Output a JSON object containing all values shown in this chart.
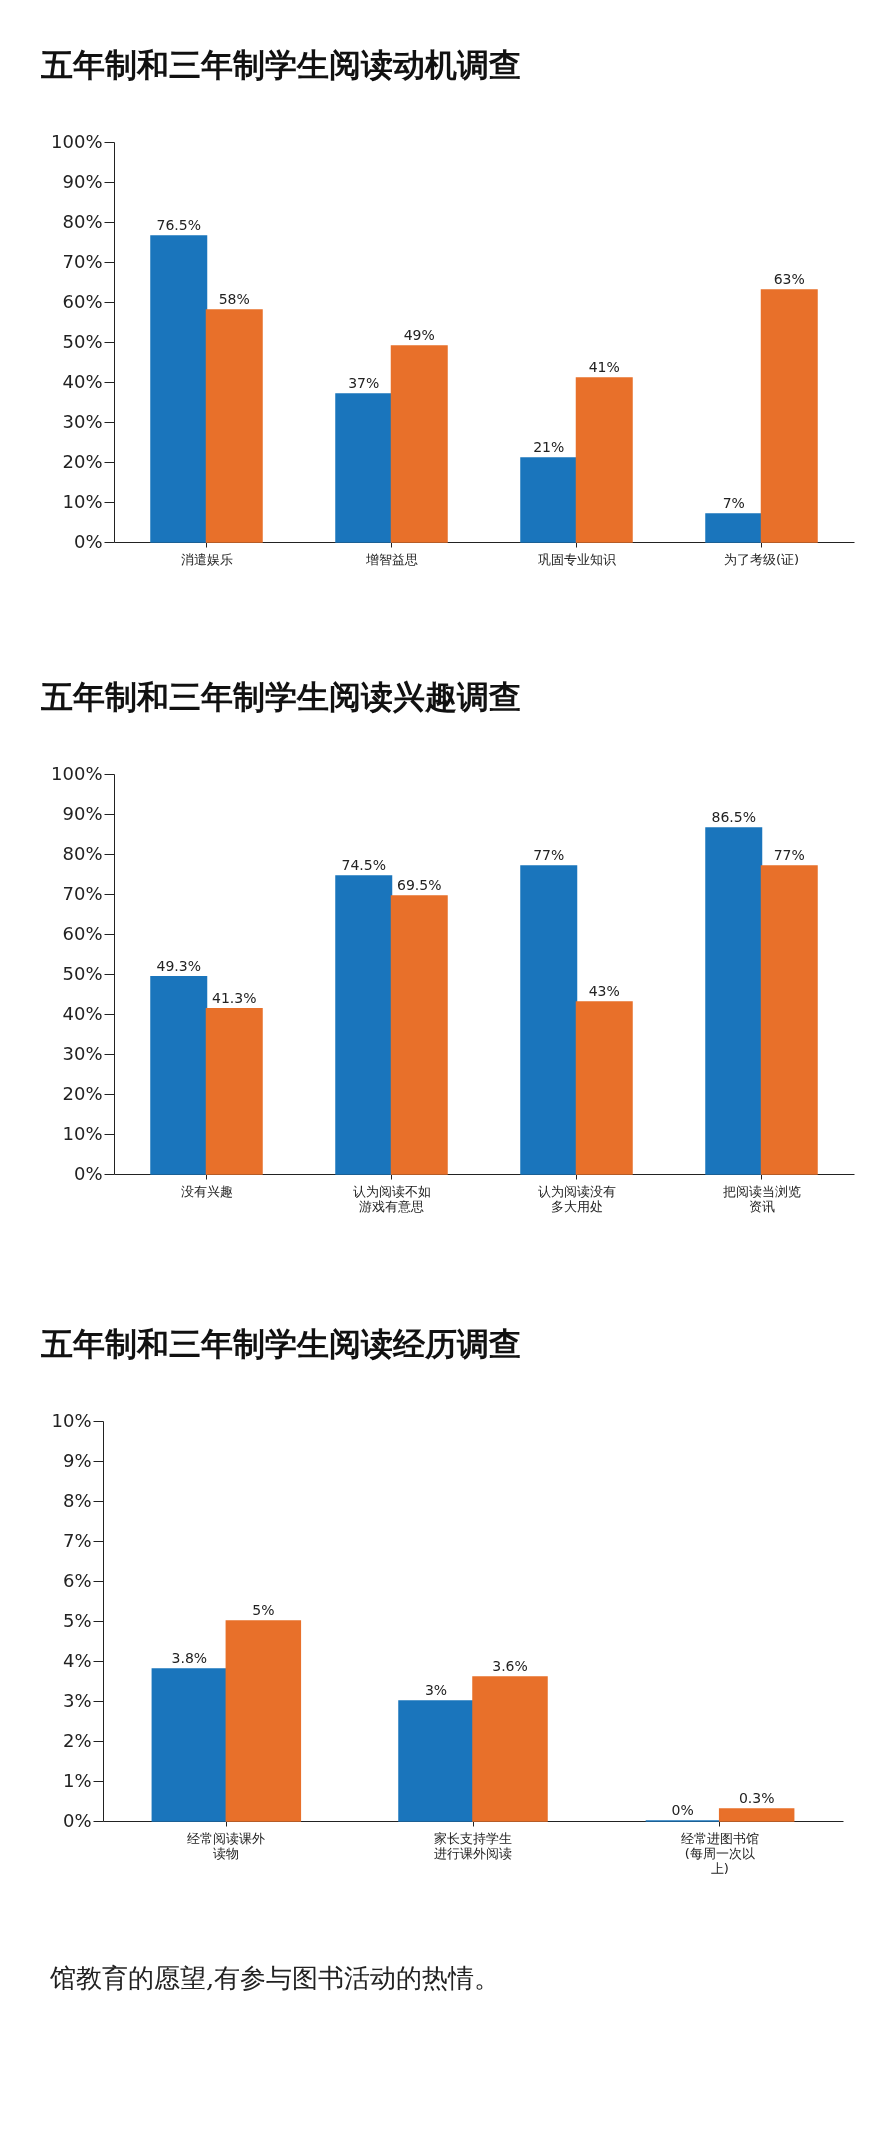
{
  "chart_data": [
    {
      "type": "bar",
      "title": "五年制和三年制学生阅读动机调查",
      "categories": [
        "消遣娱乐",
        "增智益思",
        "巩固专业知识",
        "为了考级(证)"
      ],
      "series": [
        {
          "color": "#1a75bc",
          "values": [
            76.5,
            37,
            21,
            7
          ],
          "value_labels": [
            "76.5%",
            "37%",
            "21%",
            "7%"
          ]
        },
        {
          "color": "#e8702a",
          "values": [
            58,
            49,
            41,
            63
          ],
          "value_labels": [
            "58%",
            "49%",
            "41%",
            "63%"
          ]
        }
      ],
      "ylim": [
        0,
        100
      ],
      "yticks": [
        {
          "value": 0,
          "label": "0%"
        },
        {
          "value": 10,
          "label": "10%"
        },
        {
          "value": 20,
          "label": "20%"
        },
        {
          "value": 30,
          "label": "30%"
        },
        {
          "value": 40,
          "label": "40%"
        },
        {
          "value": 50,
          "label": "50%"
        },
        {
          "value": 60,
          "label": "60%"
        },
        {
          "value": 70,
          "label": "70%"
        },
        {
          "value": 80,
          "label": "80%"
        },
        {
          "value": 90,
          "label": "90%"
        },
        {
          "value": 100,
          "label": "100%"
        }
      ]
    },
    {
      "type": "bar",
      "title": "五年制和三年制学生阅读兴趣调查",
      "categories": [
        "没有兴趣",
        "认为阅读不如游戏有意思",
        "认为阅读没有多大用处",
        "把阅读当浏览资讯"
      ],
      "series": [
        {
          "color": "#1a75bc",
          "values": [
            49.3,
            74.5,
            77,
            86.5
          ],
          "value_labels": [
            "49.3%",
            "74.5%",
            "77%",
            "86.5%"
          ]
        },
        {
          "color": "#e8702a",
          "values": [
            41.3,
            69.5,
            43,
            77
          ],
          "value_labels": [
            "41.3%",
            "69.5%",
            "43%",
            "77%"
          ]
        }
      ],
      "ylim": [
        0,
        100
      ],
      "yticks": [
        {
          "value": 0,
          "label": "0%"
        },
        {
          "value": 10,
          "label": "10%"
        },
        {
          "value": 20,
          "label": "20%"
        },
        {
          "value": 30,
          "label": "30%"
        },
        {
          "value": 40,
          "label": "40%"
        },
        {
          "value": 50,
          "label": "50%"
        },
        {
          "value": 60,
          "label": "60%"
        },
        {
          "value": 70,
          "label": "70%"
        },
        {
          "value": 80,
          "label": "80%"
        },
        {
          "value": 90,
          "label": "90%"
        },
        {
          "value": 100,
          "label": "100%"
        }
      ]
    },
    {
      "type": "bar",
      "title": "五年制和三年制学生阅读经历调查",
      "categories": [
        "经常阅读课外读物",
        "家长支持学生进行课外阅读",
        "经常进图书馆(每周一次以上)"
      ],
      "series": [
        {
          "color": "#1a75bc",
          "values": [
            3.8,
            3,
            0
          ],
          "value_labels": [
            "3.8%",
            "3%",
            "0%"
          ]
        },
        {
          "color": "#e8702a",
          "values": [
            5,
            3.6,
            0.3
          ],
          "value_labels": [
            "5%",
            "3.6%",
            "0.3%"
          ]
        }
      ],
      "ylim": [
        0,
        10
      ],
      "yticks": [
        {
          "value": 0,
          "label": "0%"
        },
        {
          "value": 1,
          "label": "1%"
        },
        {
          "value": 2,
          "label": "2%"
        },
        {
          "value": 3,
          "label": "3%"
        },
        {
          "value": 4,
          "label": "4%"
        },
        {
          "value": 5,
          "label": "5%"
        },
        {
          "value": 6,
          "label": "6%"
        },
        {
          "value": 7,
          "label": "7%"
        },
        {
          "value": 8,
          "label": "8%"
        },
        {
          "value": 9,
          "label": "9%"
        },
        {
          "value": 10,
          "label": "10%"
        }
      ],
      "annotations": [
        "馆教育的愿望,有参与图书活动的热情。"
      ]
    }
  ]
}
